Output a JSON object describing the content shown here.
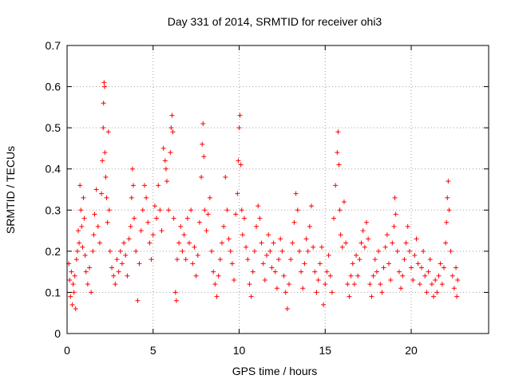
{
  "chart_data": {
    "type": "scatter",
    "title": "Day 331 of 2014, SRMTID for receiver ohi3",
    "xlabel": "GPS time / hours",
    "ylabel": "SRMTID / TECUs",
    "xlim": [
      0,
      24.5
    ],
    "ylim": [
      0,
      0.7
    ],
    "xticks": [
      0,
      5,
      10,
      15,
      20
    ],
    "yticks": [
      0,
      0.1,
      0.2,
      0.3,
      0.4,
      0.5,
      0.6,
      0.7
    ],
    "xtick_labels": [
      "0",
      "5",
      "10",
      "15",
      "20"
    ],
    "ytick_labels": [
      "0",
      "0.1",
      "0.2",
      "0.3",
      "0.4",
      "0.5",
      "0.6",
      "0.7"
    ],
    "grid": true,
    "marker": "+",
    "marker_color": "#ff0000",
    "series": [
      {
        "name": "SRMTID",
        "points": [
          [
            0.1,
            0.17
          ],
          [
            0.15,
            0.13
          ],
          [
            0.2,
            0.09
          ],
          [
            0.25,
            0.15
          ],
          [
            0.3,
            0.07
          ],
          [
            0.35,
            0.12
          ],
          [
            0.4,
            0.1
          ],
          [
            0.45,
            0.14
          ],
          [
            0.5,
            0.06
          ],
          [
            0.55,
            0.18
          ],
          [
            0.6,
            0.2
          ],
          [
            0.65,
            0.25
          ],
          [
            0.7,
            0.22
          ],
          [
            0.75,
            0.36
          ],
          [
            0.8,
            0.3
          ],
          [
            0.85,
            0.26
          ],
          [
            0.9,
            0.21
          ],
          [
            0.95,
            0.33
          ],
          [
            1.0,
            0.28
          ],
          [
            1.05,
            0.19
          ],
          [
            1.1,
            0.15
          ],
          [
            1.2,
            0.12
          ],
          [
            1.3,
            0.16
          ],
          [
            1.4,
            0.1
          ],
          [
            1.5,
            0.2
          ],
          [
            1.55,
            0.24
          ],
          [
            1.6,
            0.29
          ],
          [
            1.7,
            0.35
          ],
          [
            1.8,
            0.26
          ],
          [
            1.9,
            0.22
          ],
          [
            2.0,
            0.34
          ],
          [
            2.05,
            0.42
          ],
          [
            2.1,
            0.5
          ],
          [
            2.12,
            0.56
          ],
          [
            2.15,
            0.61
          ],
          [
            2.18,
            0.6
          ],
          [
            2.2,
            0.44
          ],
          [
            2.25,
            0.38
          ],
          [
            2.3,
            0.33
          ],
          [
            2.35,
            0.27
          ],
          [
            2.4,
            0.49
          ],
          [
            2.45,
            0.3
          ],
          [
            2.5,
            0.2
          ],
          [
            2.6,
            0.16
          ],
          [
            2.7,
            0.14
          ],
          [
            2.8,
            0.12
          ],
          [
            2.9,
            0.18
          ],
          [
            3.0,
            0.15
          ],
          [
            3.1,
            0.2
          ],
          [
            3.2,
            0.17
          ],
          [
            3.3,
            0.22
          ],
          [
            3.4,
            0.19
          ],
          [
            3.5,
            0.14
          ],
          [
            3.6,
            0.23
          ],
          [
            3.7,
            0.26
          ],
          [
            3.75,
            0.33
          ],
          [
            3.8,
            0.4
          ],
          [
            3.85,
            0.36
          ],
          [
            3.9,
            0.28
          ],
          [
            4.0,
            0.2
          ],
          [
            4.1,
            0.08
          ],
          [
            4.2,
            0.17
          ],
          [
            4.3,
            0.25
          ],
          [
            4.4,
            0.3
          ],
          [
            4.5,
            0.36
          ],
          [
            4.6,
            0.33
          ],
          [
            4.7,
            0.27
          ],
          [
            4.8,
            0.22
          ],
          [
            4.9,
            0.18
          ],
          [
            5.0,
            0.24
          ],
          [
            5.1,
            0.31
          ],
          [
            5.2,
            0.28
          ],
          [
            5.3,
            0.36
          ],
          [
            5.4,
            0.3
          ],
          [
            5.5,
            0.25
          ],
          [
            5.6,
            0.45
          ],
          [
            5.7,
            0.42
          ],
          [
            5.75,
            0.4
          ],
          [
            5.8,
            0.37
          ],
          [
            5.9,
            0.3
          ],
          [
            6.0,
            0.44
          ],
          [
            6.05,
            0.5
          ],
          [
            6.1,
            0.53
          ],
          [
            6.15,
            0.49
          ],
          [
            6.2,
            0.28
          ],
          [
            6.3,
            0.1
          ],
          [
            6.35,
            0.08
          ],
          [
            6.4,
            0.18
          ],
          [
            6.5,
            0.22
          ],
          [
            6.6,
            0.26
          ],
          [
            6.7,
            0.2
          ],
          [
            6.8,
            0.24
          ],
          [
            6.9,
            0.18
          ],
          [
            7.0,
            0.28
          ],
          [
            7.1,
            0.22
          ],
          [
            7.2,
            0.3
          ],
          [
            7.3,
            0.17
          ],
          [
            7.4,
            0.21
          ],
          [
            7.5,
            0.14
          ],
          [
            7.6,
            0.19
          ],
          [
            7.7,
            0.27
          ],
          [
            7.8,
            0.38
          ],
          [
            7.85,
            0.46
          ],
          [
            7.9,
            0.51
          ],
          [
            7.95,
            0.43
          ],
          [
            8.0,
            0.3
          ],
          [
            8.1,
            0.25
          ],
          [
            8.2,
            0.29
          ],
          [
            8.3,
            0.33
          ],
          [
            8.4,
            0.2
          ],
          [
            8.5,
            0.15
          ],
          [
            8.6,
            0.12
          ],
          [
            8.7,
            0.09
          ],
          [
            8.8,
            0.14
          ],
          [
            8.9,
            0.18
          ],
          [
            9.0,
            0.22
          ],
          [
            9.1,
            0.26
          ],
          [
            9.2,
            0.38
          ],
          [
            9.3,
            0.3
          ],
          [
            9.4,
            0.23
          ],
          [
            9.5,
            0.2
          ],
          [
            9.6,
            0.17
          ],
          [
            9.7,
            0.13
          ],
          [
            9.8,
            0.29
          ],
          [
            9.9,
            0.34
          ],
          [
            9.95,
            0.42
          ],
          [
            10.0,
            0.5
          ],
          [
            10.05,
            0.53
          ],
          [
            10.1,
            0.41
          ],
          [
            10.15,
            0.3
          ],
          [
            10.2,
            0.24
          ],
          [
            10.3,
            0.28
          ],
          [
            10.4,
            0.21
          ],
          [
            10.5,
            0.18
          ],
          [
            10.6,
            0.12
          ],
          [
            10.7,
            0.09
          ],
          [
            10.8,
            0.15
          ],
          [
            10.9,
            0.2
          ],
          [
            11.0,
            0.26
          ],
          [
            11.1,
            0.31
          ],
          [
            11.2,
            0.28
          ],
          [
            11.3,
            0.22
          ],
          [
            11.4,
            0.17
          ],
          [
            11.5,
            0.13
          ],
          [
            11.6,
            0.19
          ],
          [
            11.7,
            0.24
          ],
          [
            11.8,
            0.2
          ],
          [
            11.9,
            0.16
          ],
          [
            12.0,
            0.22
          ],
          [
            12.1,
            0.15
          ],
          [
            12.2,
            0.11
          ],
          [
            12.3,
            0.18
          ],
          [
            12.4,
            0.23
          ],
          [
            12.5,
            0.2
          ],
          [
            12.6,
            0.14
          ],
          [
            12.7,
            0.1
          ],
          [
            12.8,
            0.06
          ],
          [
            12.9,
            0.12
          ],
          [
            13.0,
            0.18
          ],
          [
            13.1,
            0.22
          ],
          [
            13.2,
            0.27
          ],
          [
            13.3,
            0.34
          ],
          [
            13.4,
            0.3
          ],
          [
            13.5,
            0.2
          ],
          [
            13.6,
            0.15
          ],
          [
            13.7,
            0.11
          ],
          [
            13.8,
            0.17
          ],
          [
            13.9,
            0.23
          ],
          [
            14.0,
            0.2
          ],
          [
            14.1,
            0.26
          ],
          [
            14.2,
            0.31
          ],
          [
            14.3,
            0.21
          ],
          [
            14.4,
            0.15
          ],
          [
            14.5,
            0.1
          ],
          [
            14.6,
            0.13
          ],
          [
            14.7,
            0.17
          ],
          [
            14.8,
            0.21
          ],
          [
            14.9,
            0.07
          ],
          [
            15.0,
            0.12
          ],
          [
            15.1,
            0.15
          ],
          [
            15.2,
            0.19
          ],
          [
            15.3,
            0.14
          ],
          [
            15.4,
            0.1
          ],
          [
            15.5,
            0.28
          ],
          [
            15.6,
            0.36
          ],
          [
            15.7,
            0.44
          ],
          [
            15.75,
            0.49
          ],
          [
            15.8,
            0.41
          ],
          [
            15.85,
            0.3
          ],
          [
            15.9,
            0.24
          ],
          [
            16.0,
            0.21
          ],
          [
            16.1,
            0.32
          ],
          [
            16.2,
            0.22
          ],
          [
            16.3,
            0.12
          ],
          [
            16.4,
            0.09
          ],
          [
            16.5,
            0.14
          ],
          [
            16.6,
            0.17
          ],
          [
            16.7,
            0.12
          ],
          [
            16.8,
            0.19
          ],
          [
            16.9,
            0.14
          ],
          [
            17.0,
            0.18
          ],
          [
            17.1,
            0.22
          ],
          [
            17.2,
            0.25
          ],
          [
            17.3,
            0.21
          ],
          [
            17.4,
            0.27
          ],
          [
            17.5,
            0.23
          ],
          [
            17.6,
            0.12
          ],
          [
            17.7,
            0.09
          ],
          [
            17.8,
            0.14
          ],
          [
            17.9,
            0.18
          ],
          [
            18.0,
            0.15
          ],
          [
            18.1,
            0.2
          ],
          [
            18.2,
            0.12
          ],
          [
            18.3,
            0.1
          ],
          [
            18.4,
            0.16
          ],
          [
            18.5,
            0.21
          ],
          [
            18.6,
            0.24
          ],
          [
            18.7,
            0.17
          ],
          [
            18.8,
            0.13
          ],
          [
            18.9,
            0.22
          ],
          [
            19.0,
            0.26
          ],
          [
            19.05,
            0.33
          ],
          [
            19.1,
            0.29
          ],
          [
            19.2,
            0.2
          ],
          [
            19.3,
            0.15
          ],
          [
            19.4,
            0.11
          ],
          [
            19.5,
            0.14
          ],
          [
            19.6,
            0.18
          ],
          [
            19.7,
            0.22
          ],
          [
            19.8,
            0.26
          ],
          [
            19.9,
            0.2
          ],
          [
            20.0,
            0.16
          ],
          [
            20.1,
            0.13
          ],
          [
            20.2,
            0.19
          ],
          [
            20.3,
            0.23
          ],
          [
            20.4,
            0.17
          ],
          [
            20.5,
            0.12
          ],
          [
            20.6,
            0.16
          ],
          [
            20.7,
            0.2
          ],
          [
            20.8,
            0.14
          ],
          [
            20.9,
            0.1
          ],
          [
            21.0,
            0.15
          ],
          [
            21.1,
            0.18
          ],
          [
            21.2,
            0.12
          ],
          [
            21.3,
            0.09
          ],
          [
            21.4,
            0.13
          ],
          [
            21.5,
            0.1
          ],
          [
            21.6,
            0.14
          ],
          [
            21.7,
            0.17
          ],
          [
            21.8,
            0.12
          ],
          [
            21.9,
            0.16
          ],
          [
            22.0,
            0.22
          ],
          [
            22.05,
            0.27
          ],
          [
            22.1,
            0.33
          ],
          [
            22.15,
            0.37
          ],
          [
            22.2,
            0.3
          ],
          [
            22.3,
            0.2
          ],
          [
            22.4,
            0.14
          ],
          [
            22.5,
            0.11
          ],
          [
            22.6,
            0.16
          ],
          [
            22.65,
            0.09
          ],
          [
            22.7,
            0.13
          ]
        ]
      }
    ]
  }
}
